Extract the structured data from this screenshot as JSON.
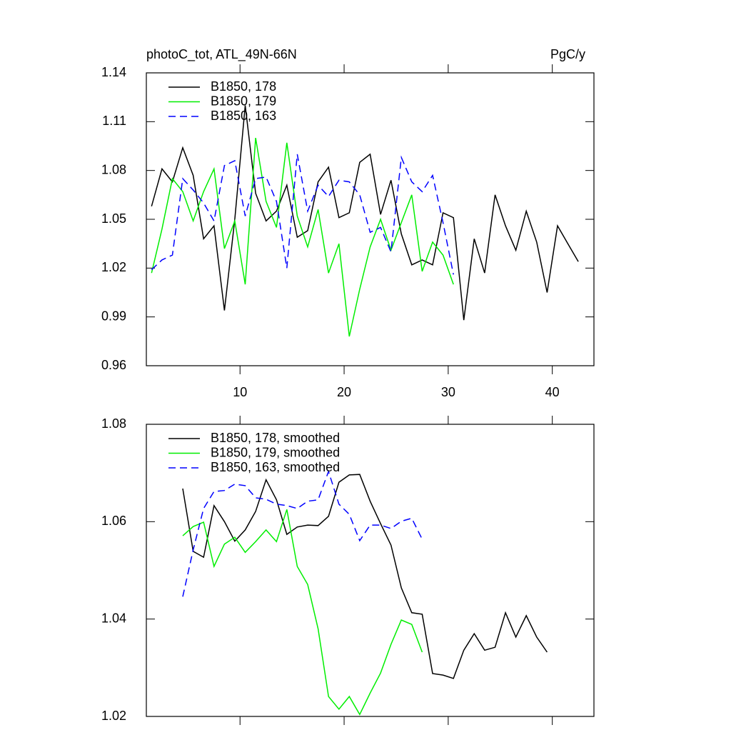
{
  "chart_data": [
    {
      "type": "line",
      "title": "photoC_tot, ATL_49N-66N",
      "units": "PgC/y",
      "xlim": [
        1,
        44
      ],
      "xticks": [
        10,
        20,
        30,
        40
      ],
      "xtick_labels": true,
      "ylim": [
        0.96,
        1.14
      ],
      "yticks": [
        0.96,
        0.99,
        1.02,
        1.05,
        1.08,
        1.11,
        1.14
      ],
      "series": [
        {
          "name": "B1850, 178",
          "color": "#000000",
          "dashed": false,
          "x": [
            1.5,
            2.5,
            3.5,
            4.5,
            5.5,
            6.5,
            7.5,
            8.5,
            9.5,
            10.5,
            11.5,
            12.5,
            13.5,
            14.5,
            15.5,
            16.5,
            17.5,
            18.5,
            19.5,
            20.5,
            21.5,
            22.5,
            23.5,
            24.5,
            25.5,
            26.5,
            27.5,
            28.5,
            29.5,
            30.5,
            31.5,
            32.5,
            33.5,
            34.5,
            35.5,
            36.5,
            37.5,
            38.5,
            39.5,
            40.5,
            41.5,
            42.5
          ],
          "values": [
            1.058,
            1.081,
            1.073,
            1.094,
            1.077,
            1.038,
            1.046,
            0.994,
            1.05,
            1.12,
            1.066,
            1.049,
            1.055,
            1.071,
            1.039,
            1.043,
            1.073,
            1.082,
            1.051,
            1.054,
            1.085,
            1.09,
            1.053,
            1.074,
            1.041,
            1.022,
            1.025,
            1.022,
            1.054,
            1.051,
            0.988,
            1.038,
            1.017,
            1.065,
            1.046,
            1.031,
            1.055,
            1.036,
            1.005,
            1.046,
            1.035,
            1.024
          ]
        },
        {
          "name": "B1850, 179",
          "color": "#00ee00",
          "dashed": false,
          "x": [
            1.5,
            2.5,
            3.5,
            4.5,
            5.5,
            6.5,
            7.5,
            8.5,
            9.5,
            10.5,
            11.5,
            12.5,
            13.5,
            14.5,
            15.5,
            16.5,
            17.5,
            18.5,
            19.5,
            20.5,
            21.5,
            22.5,
            23.5,
            24.5,
            25.5,
            26.5,
            27.5,
            28.5,
            29.5,
            30.5
          ],
          "values": [
            1.017,
            1.044,
            1.075,
            1.067,
            1.049,
            1.067,
            1.081,
            1.032,
            1.049,
            1.01,
            1.1,
            1.061,
            1.045,
            1.097,
            1.052,
            1.033,
            1.056,
            1.017,
            1.035,
            0.978,
            1.007,
            1.033,
            1.05,
            1.031,
            1.048,
            1.065,
            1.018,
            1.036,
            1.028,
            1.01
          ]
        },
        {
          "name": "B1850, 163",
          "color": "#0000ff",
          "dashed": true,
          "x": [
            1.5,
            2.5,
            3.5,
            4.5,
            5.5,
            6.5,
            7.5,
            8.5,
            9.5,
            10.5,
            11.5,
            12.5,
            13.5,
            14.5,
            15.5,
            16.5,
            17.5,
            18.5,
            19.5,
            20.5,
            21.5,
            22.5,
            23.5,
            24.5,
            25.5,
            26.5,
            27.5,
            28.5,
            29.5,
            30.5
          ],
          "values": [
            1.019,
            1.025,
            1.028,
            1.075,
            1.068,
            1.06,
            1.049,
            1.083,
            1.086,
            1.052,
            1.075,
            1.076,
            1.061,
            1.02,
            1.09,
            1.055,
            1.071,
            1.064,
            1.074,
            1.073,
            1.065,
            1.042,
            1.045,
            1.03,
            1.088,
            1.073,
            1.067,
            1.077,
            1.048,
            1.016
          ]
        }
      ]
    },
    {
      "type": "line",
      "xlim": [
        1,
        44
      ],
      "xticks": [
        10,
        20,
        30,
        40
      ],
      "xtick_labels": false,
      "ylim": [
        1.02,
        1.08
      ],
      "yticks": [
        1.02,
        1.04,
        1.06,
        1.08
      ],
      "series": [
        {
          "name": "B1850, 178, smoothed",
          "color": "#000000",
          "dashed": false,
          "x": [
            4.5,
            5.5,
            6.5,
            7.5,
            8.5,
            9.5,
            10.5,
            11.5,
            12.5,
            13.5,
            14.5,
            15.5,
            16.5,
            17.5,
            18.5,
            19.5,
            20.5,
            21.5,
            22.5,
            23.5,
            24.5,
            25.5,
            26.5,
            27.5,
            28.5,
            29.5,
            30.5,
            31.5,
            32.5,
            33.5,
            34.5,
            35.5,
            36.5,
            37.5,
            38.5,
            39.5
          ],
          "values": [
            1.0668,
            1.0539,
            1.0527,
            1.0633,
            1.06,
            1.056,
            1.0583,
            1.0621,
            1.0686,
            1.0645,
            1.0574,
            1.0589,
            1.0593,
            1.0592,
            1.0611,
            1.0681,
            1.0696,
            1.0697,
            1.0642,
            1.0596,
            1.0552,
            1.0464,
            1.0413,
            1.041,
            1.0288,
            1.0285,
            1.0278,
            1.0336,
            1.037,
            1.0336,
            1.0342,
            1.0413,
            1.0363,
            1.0407,
            1.0363,
            1.0332
          ]
        },
        {
          "name": "B1850, 179, smoothed",
          "color": "#00ee00",
          "dashed": false,
          "x": [
            4.5,
            5.5,
            6.5,
            7.5,
            8.5,
            9.5,
            10.5,
            11.5,
            12.5,
            13.5,
            14.5,
            15.5,
            16.5,
            17.5,
            18.5,
            19.5,
            20.5,
            21.5,
            22.5,
            23.5,
            24.5,
            25.5,
            26.5,
            27.5
          ],
          "values": [
            1.0571,
            1.059,
            1.0599,
            1.0508,
            1.0554,
            1.0568,
            1.0537,
            1.0559,
            1.0583,
            1.0559,
            1.0625,
            1.0508,
            1.0471,
            1.038,
            1.0241,
            1.0215,
            1.0241,
            1.0204,
            1.0248,
            1.0289,
            1.0348,
            1.0398,
            1.0389,
            1.0332
          ]
        },
        {
          "name": "B1850, 163, smoothed",
          "color": "#0000ff",
          "dashed": true,
          "x": [
            4.5,
            5.5,
            6.5,
            7.5,
            8.5,
            9.5,
            10.5,
            11.5,
            12.5,
            13.5,
            14.5,
            15.5,
            16.5,
            17.5,
            18.5,
            19.5,
            20.5,
            21.5,
            22.5,
            23.5,
            24.5,
            25.5,
            26.5,
            27.5
          ],
          "values": [
            1.0446,
            1.0542,
            1.0627,
            1.0662,
            1.0664,
            1.0677,
            1.0674,
            1.0649,
            1.0646,
            1.0636,
            1.0633,
            1.0627,
            1.0642,
            1.0645,
            1.0703,
            1.0636,
            1.0615,
            1.0561,
            1.0593,
            1.0593,
            1.0586,
            1.0601,
            1.0607,
            1.0564
          ]
        }
      ]
    }
  ]
}
